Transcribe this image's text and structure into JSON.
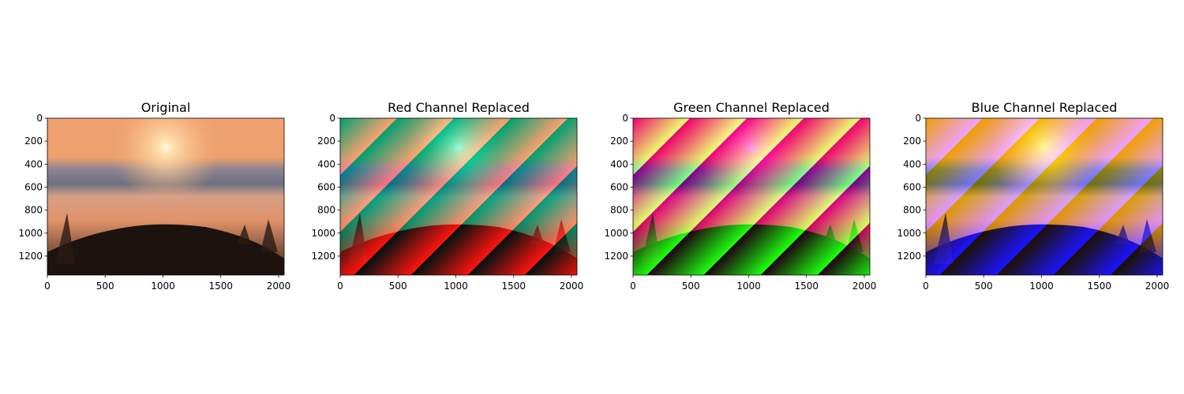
{
  "chart_data": [
    {
      "type": "image",
      "title": "Original",
      "xlim": [
        0,
        2048
      ],
      "ylim": [
        1365,
        0
      ],
      "xticks": [
        0,
        500,
        1000,
        1500,
        2000
      ],
      "yticks": [
        0,
        200,
        400,
        600,
        800,
        1000,
        1200
      ]
    },
    {
      "type": "image",
      "title": "Red Channel Replaced",
      "xlim": [
        0,
        2048
      ],
      "ylim": [
        1365,
        0
      ],
      "xticks": [
        0,
        500,
        1000,
        1500,
        2000
      ],
      "yticks": [
        0,
        200,
        400,
        600,
        800,
        1000,
        1200
      ]
    },
    {
      "type": "image",
      "title": "Green Channel Replaced",
      "xlim": [
        0,
        2048
      ],
      "ylim": [
        1365,
        0
      ],
      "xticks": [
        0,
        500,
        1000,
        1500,
        2000
      ],
      "yticks": [
        0,
        200,
        400,
        600,
        800,
        1000,
        1200
      ]
    },
    {
      "type": "image",
      "title": "Blue Channel Replaced",
      "xlim": [
        0,
        2048
      ],
      "ylim": [
        1365,
        0
      ],
      "xticks": [
        0,
        500,
        1000,
        1500,
        2000
      ],
      "yticks": [
        0,
        200,
        400,
        600,
        800,
        1000,
        1200
      ]
    }
  ]
}
